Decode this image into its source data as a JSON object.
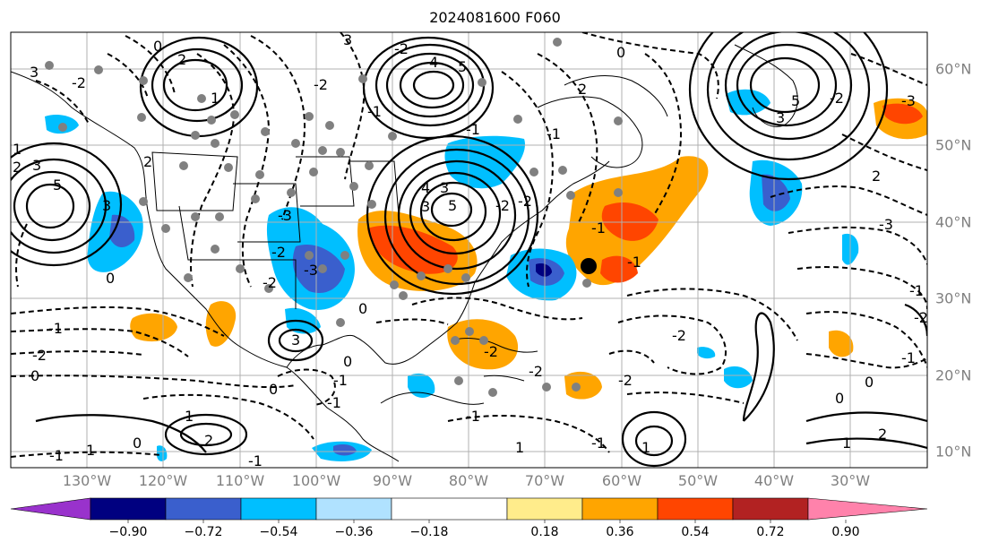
{
  "title": "2024081600 F060",
  "longitude_labels": [
    "130°W",
    "120°W",
    "110°W",
    "100°W",
    "90°W",
    "80°W",
    "70°W",
    "60°W",
    "50°W",
    "40°W",
    "30°W"
  ],
  "latitude_labels": [
    "60°N",
    "50°N",
    "40°N",
    "30°N",
    "20°N",
    "10°N"
  ],
  "colorbar": {
    "tick_labels": [
      "−0.90",
      "−0.72",
      "−0.54",
      "−0.36",
      "−0.18",
      "0.18",
      "0.36",
      "0.54",
      "0.72",
      "0.90"
    ],
    "colors": [
      "#9932CC",
      "#000080",
      "#3A5FCD",
      "#00BFFF",
      "#B0E2FF",
      "#FFFFFF",
      "#FFEC8B",
      "#FFA500",
      "#FF4500",
      "#B22222",
      "#FF82AB"
    ]
  },
  "contour_labels": [
    "3",
    "3",
    "5",
    "4",
    "2",
    "-2",
    "2",
    "3",
    "0",
    "2",
    "1",
    "2",
    "3",
    "5",
    "0",
    "-2",
    "-2",
    "-1",
    "-3",
    "0",
    "3",
    "-2",
    "-1",
    "-1",
    "0",
    "-1",
    "-2",
    "-3",
    "-2",
    "2",
    "-3",
    "-2",
    "5",
    "3",
    "3",
    "4",
    "5",
    "1",
    "1",
    "3",
    "0",
    "-2",
    "2",
    "-1",
    "-1",
    "0",
    "0",
    "-2",
    "-1",
    "-2",
    "1",
    "-1",
    "1",
    "-1",
    "1",
    "0",
    "1",
    "0",
    "-2",
    "-1",
    "-2",
    "-1",
    "-2",
    "-1",
    "-1",
    "-3",
    "0",
    "-1",
    "-2",
    "2"
  ]
}
